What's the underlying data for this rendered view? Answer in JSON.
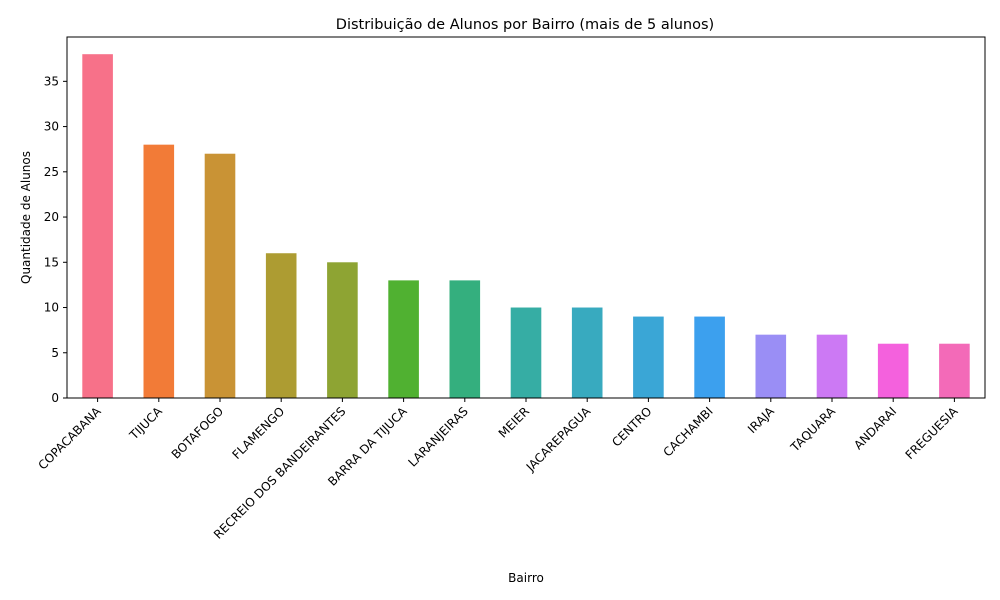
{
  "chart_data": {
    "type": "bar",
    "title": "Distribuição de Alunos por Bairro (mais de 5 alunos)",
    "xlabel": "Bairro",
    "ylabel": "Quantidade de Alunos",
    "categories": [
      "COPACABANA",
      "TIJUCA",
      "BOTAFOGO",
      "FLAMENGO",
      "RECREIO DOS BANDEIRANTES",
      "BARRA DA TIJUCA",
      "LARANJEIRAS",
      "MEIER",
      "JACAREPAGUA",
      "CENTRO",
      "CACHAMBI",
      "IRAJA",
      "TAQUARA",
      "ANDARAI",
      "FREGUESIA"
    ],
    "values": [
      38,
      28,
      27,
      16,
      15,
      13,
      13,
      10,
      10,
      9,
      9,
      7,
      7,
      6,
      6
    ],
    "colors": [
      "#f77189",
      "#f27b37",
      "#c99335",
      "#ad9c32",
      "#8ea433",
      "#50b131",
      "#34af7e",
      "#36ada4",
      "#38aabf",
      "#3aa6d6",
      "#3ca0ee",
      "#9a8ef5",
      "#cc79f4",
      "#f461dd",
      "#f36ab8"
    ],
    "ylim": [
      0,
      39.9
    ],
    "yticks": [
      0,
      5,
      10,
      15,
      20,
      25,
      30,
      35
    ],
    "grid": false,
    "legend": "none"
  }
}
